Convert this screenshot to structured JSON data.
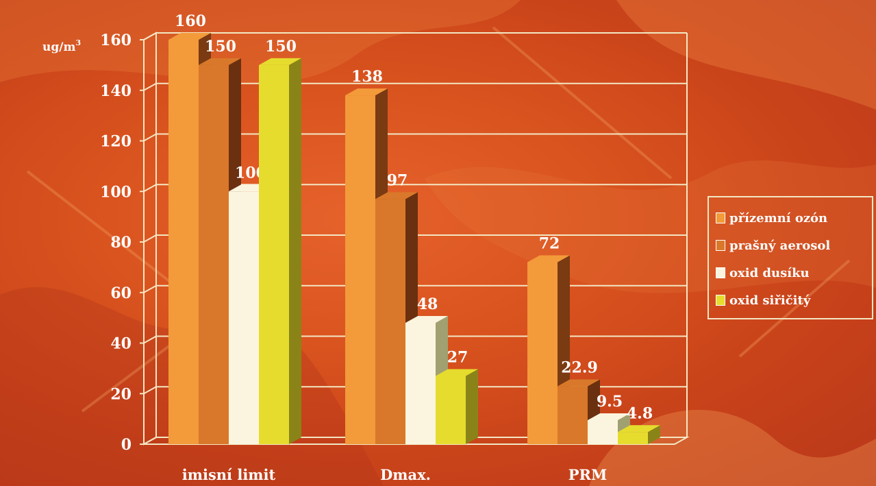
{
  "chart_data": {
    "type": "bar",
    "unit_label": "ug/m",
    "unit_superscript": "3",
    "categories": [
      "imisní limit",
      "Dmax.",
      "PRM"
    ],
    "series": [
      {
        "name": "přízemní ozón",
        "values": [
          160,
          138,
          72
        ],
        "color": "#f39a3a",
        "side_color": "#7a3a12"
      },
      {
        "name": "prašný aerosol",
        "values": [
          150,
          97,
          22.9
        ],
        "color": "#d9782a",
        "side_color": "#6b3010"
      },
      {
        "name": "oxid dusíku",
        "values": [
          100,
          48,
          9.5
        ],
        "color": "#fbf5df",
        "side_color": "#a0a070"
      },
      {
        "name": "oxid siřičitý",
        "values": [
          150,
          27,
          4.8
        ],
        "color": "#e6dc2e",
        "side_color": "#8a8418"
      }
    ],
    "data_labels": [
      [
        "160",
        "138",
        "72"
      ],
      [
        "150",
        "97",
        "22.9"
      ],
      [
        "100",
        "48",
        "9.5"
      ],
      [
        "150",
        "27",
        "4.8"
      ]
    ],
    "y_ticks": [
      "0",
      "20",
      "40",
      "60",
      "80",
      "100",
      "120",
      "140",
      "160"
    ],
    "ylim": [
      0,
      160
    ],
    "grid": true,
    "legend_position": "right"
  }
}
